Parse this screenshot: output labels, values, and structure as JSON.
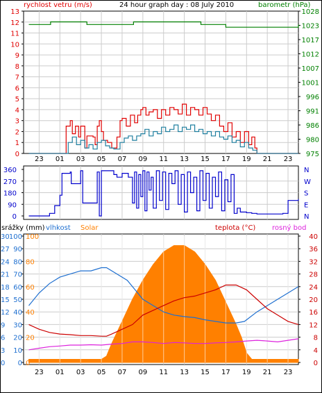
{
  "title": "24 hour graph day : 08 July 2010",
  "colors": {
    "wind_axis": "#e00000",
    "baro_axis": "#008000",
    "wind_avg": "#1f7f9f",
    "wind_gust": "#e00000",
    "baro_line": "#008000",
    "direction": "#0000cc",
    "humidity": "#1e6fd0",
    "rain_axis": "#1e6fd0",
    "solar": "#ff8000",
    "temp": "#cc0000",
    "dew": "#dd22dd",
    "grid": "#cccccc"
  },
  "chart_data": [
    {
      "type": "line",
      "panel": "wind-barometer",
      "left_label": "rychlost vetru (m/s)",
      "right_label": "barometr (hPa)",
      "left_ticks": [
        "0",
        "1",
        "2",
        "3",
        "4",
        "5",
        "6",
        "7",
        "8",
        "9",
        "10",
        "11",
        "12",
        "13"
      ],
      "right_ticks": [
        "975",
        "980",
        "986",
        "991",
        "996",
        "1001",
        "1007",
        "1012",
        "1017",
        "1023",
        "1028"
      ],
      "x_ticks": [
        "23",
        "01",
        "03",
        "05",
        "07",
        "09",
        "11",
        "13",
        "15",
        "17",
        "19",
        "21",
        "23"
      ],
      "ylim_left": [
        0,
        13
      ],
      "ylim_right": [
        975,
        1028
      ],
      "x_hours_range": [
        -2.5,
        24
      ],
      "series": [
        {
          "name": "gust",
          "x": [
            -2.0,
            1.5,
            1.6,
            2.0,
            2.2,
            2.5,
            2.8,
            3.0,
            3.4,
            3.6,
            4.2,
            4.4,
            4.6,
            4.8,
            5.0,
            5.2,
            5.6,
            6.0,
            6.5,
            6.8,
            7.0,
            7.4,
            7.8,
            8.2,
            8.5,
            8.8,
            9.0,
            9.3,
            9.6,
            10.0,
            10.4,
            10.8,
            11.2,
            11.6,
            12.0,
            12.4,
            12.8,
            13.2,
            13.6,
            14.0,
            14.4,
            14.8,
            15.2,
            15.6,
            16.0,
            16.4,
            16.8,
            17.2,
            17.6,
            18.0,
            18.4,
            18.8,
            19.2,
            19.5,
            19.8,
            20.0,
            24.0
          ],
          "y": [
            0,
            0,
            2.5,
            3.0,
            1.8,
            2.5,
            1.5,
            2.5,
            0.5,
            1.6,
            1.5,
            0.8,
            2.5,
            3.0,
            2.0,
            1.2,
            1.0,
            0.5,
            1.5,
            3.0,
            3.2,
            2.5,
            3.5,
            2.8,
            3.5,
            4.0,
            4.2,
            3.5,
            3.8,
            4.0,
            3.2,
            4.0,
            3.5,
            4.2,
            4.0,
            3.6,
            4.5,
            3.5,
            4.2,
            4.0,
            3.5,
            4.2,
            3.6,
            3.0,
            3.5,
            2.5,
            2.0,
            2.8,
            1.5,
            2.0,
            1.0,
            2.0,
            0.8,
            1.5,
            0.5,
            0,
            0
          ]
        },
        {
          "name": "average",
          "x": [
            -2.0,
            1.5,
            1.8,
            2.2,
            2.6,
            3.0,
            3.4,
            3.8,
            4.2,
            4.6,
            5.0,
            5.4,
            5.8,
            6.2,
            6.8,
            7.2,
            7.6,
            8.0,
            8.4,
            8.8,
            9.2,
            9.6,
            10.0,
            10.4,
            10.8,
            11.2,
            11.6,
            12.0,
            12.4,
            12.8,
            13.2,
            13.6,
            14.0,
            14.4,
            14.8,
            15.2,
            15.6,
            16.0,
            16.4,
            16.8,
            17.2,
            17.6,
            18.0,
            18.4,
            18.8,
            19.2,
            19.6,
            20.0,
            24.0
          ],
          "y": [
            0,
            0,
            1.0,
            1.5,
            0.8,
            1.2,
            0.5,
            0.8,
            0.4,
            1.0,
            1.2,
            0.7,
            0.5,
            0.4,
            1.0,
            1.4,
            1.6,
            1.2,
            1.6,
            1.8,
            2.2,
            1.6,
            2.0,
            1.8,
            2.4,
            2.0,
            2.2,
            2.6,
            2.0,
            2.4,
            2.2,
            2.6,
            2.0,
            2.2,
            1.8,
            2.0,
            1.6,
            2.0,
            1.5,
            1.3,
            1.6,
            1.0,
            1.2,
            0.6,
            1.0,
            0.5,
            0.3,
            0,
            0
          ]
        },
        {
          "name": "pressure",
          "axis": "right",
          "x": [
            -2.0,
            0.0,
            0.1,
            3.5,
            3.6,
            8.0,
            8.1,
            14.5,
            14.6,
            17.0,
            24.0
          ],
          "y": [
            1023,
            1023,
            1024,
            1024,
            1023,
            1023,
            1024,
            1024,
            1023,
            1022,
            1023
          ]
        }
      ]
    },
    {
      "type": "line",
      "panel": "wind-direction",
      "left_ticks": [
        "0",
        "90",
        "180",
        "270",
        "360"
      ],
      "right_ticks": [
        "N",
        "W",
        "S",
        "E",
        "N"
      ],
      "x_ticks": [
        "23",
        "01",
        "03",
        "05",
        "07",
        "09",
        "11",
        "13",
        "15",
        "17",
        "19",
        "21",
        "23"
      ],
      "ylim": [
        0,
        360
      ],
      "series": [
        {
          "name": "direction",
          "x": [
            -2.0,
            0.0,
            0.5,
            1.0,
            1.2,
            1.8,
            2.0,
            2.1,
            3.0,
            3.2,
            4.6,
            4.8,
            5.0,
            6.2,
            6.5,
            7.0,
            7.6,
            8.0,
            8.2,
            8.4,
            8.6,
            8.8,
            9.0,
            9.2,
            9.4,
            9.6,
            9.8,
            10.0,
            10.3,
            10.6,
            10.9,
            11.2,
            11.5,
            11.8,
            12.1,
            12.4,
            12.7,
            13.0,
            13.3,
            13.6,
            13.9,
            14.2,
            14.5,
            14.8,
            15.1,
            15.4,
            15.7,
            16.0,
            16.3,
            16.6,
            16.9,
            17.2,
            17.5,
            17.8,
            18.1,
            18.4,
            19.0,
            19.5,
            20.0,
            22.5,
            23.0,
            24.0
          ],
          "y": [
            0,
            20,
            80,
            160,
            330,
            330,
            340,
            250,
            350,
            100,
            340,
            0,
            350,
            320,
            300,
            330,
            300,
            100,
            340,
            60,
            320,
            150,
            350,
            40,
            340,
            200,
            300,
            60,
            350,
            120,
            340,
            50,
            330,
            250,
            350,
            90,
            320,
            30,
            340,
            180,
            300,
            40,
            350,
            120,
            330,
            60,
            300,
            150,
            340,
            40,
            280,
            110,
            320,
            20,
            60,
            30,
            25,
            20,
            15,
            20,
            120,
            130
          ]
        }
      ]
    },
    {
      "type": "line",
      "panel": "temperature-humidity",
      "labels": {
        "rain": "srážky (mm)",
        "humidity": "vlhkost",
        "solar": "Solar",
        "temp": "teplota (°C)",
        "dew": "rosný bod"
      },
      "rain_ticks": [
        "0",
        "3",
        "6",
        "9",
        "12",
        "15",
        "18",
        "21",
        "24",
        "27",
        "30"
      ],
      "humidity_ticks": [
        "0",
        "10",
        "20",
        "30",
        "40",
        "50",
        "60",
        "70",
        "80",
        "90",
        "100"
      ],
      "temp_ticks": [
        "0",
        "4",
        "8",
        "12",
        "16",
        "20",
        "24",
        "28",
        "32",
        "36",
        "40"
      ],
      "solar_ticks": [
        "0",
        "20",
        "40",
        "60",
        "80",
        "100"
      ],
      "x_ticks": [
        "23",
        "01",
        "03",
        "05",
        "07",
        "09",
        "11",
        "13",
        "15",
        "17",
        "19",
        "21",
        "23"
      ],
      "ylim_temp": [
        0,
        40
      ],
      "series": [
        {
          "name": "humidity",
          "x": [
            -2.0,
            -1.0,
            0.0,
            1.0,
            2.0,
            3.0,
            4.0,
            5.0,
            5.5,
            6.5,
            7.5,
            8.5,
            9.0,
            10.0,
            11.0,
            12.0,
            13.0,
            14.0,
            15.0,
            16.0,
            17.0,
            18.0,
            18.8,
            20.0,
            21.0,
            22.0,
            23.0,
            24.0
          ],
          "y": [
            18,
            22,
            25,
            27,
            28,
            29,
            29,
            30,
            30,
            28,
            26,
            22,
            20,
            18,
            16,
            15,
            14.5,
            14.2,
            13.5,
            13,
            12.5,
            12.5,
            13,
            16,
            18,
            20,
            22,
            24
          ]
        },
        {
          "name": "solar",
          "x": [
            -2.0,
            5.0,
            5.5,
            6.0,
            7.0,
            8.0,
            9.0,
            10.0,
            11.0,
            12.0,
            12.5,
            13.0,
            14.0,
            15.0,
            16.0,
            17.0,
            18.0,
            18.5,
            19.0,
            19.5,
            24.0
          ],
          "y": [
            1,
            1,
            2,
            6,
            13,
            20,
            26,
            31,
            35,
            37,
            37,
            37,
            35,
            31,
            26,
            19,
            12,
            8,
            3,
            1,
            1
          ]
        },
        {
          "name": "temp",
          "x": [
            -2.0,
            -1.0,
            0.0,
            1.0,
            2.0,
            3.0,
            4.0,
            5.0,
            5.5,
            6.0,
            7.0,
            8.0,
            9.0,
            10.0,
            11.0,
            12.0,
            13.0,
            14.0,
            15.0,
            16.0,
            17.0,
            18.0,
            19.0,
            20.0,
            21.0,
            22.0,
            23.0,
            24.0
          ],
          "y": [
            12,
            10.5,
            9.5,
            9,
            8.8,
            8.5,
            8.5,
            8.3,
            8.3,
            9,
            10.5,
            12,
            15,
            16.5,
            18,
            19.5,
            20.5,
            21,
            22,
            23,
            24.5,
            24.5,
            23,
            20,
            17,
            15,
            13,
            12
          ]
        },
        {
          "name": "dew",
          "x": [
            -2.0,
            -1.0,
            0.0,
            1.0,
            2.0,
            3.0,
            4.0,
            5.0,
            6.0,
            7.0,
            8.0,
            9.0,
            10.0,
            11.0,
            12.0,
            13.0,
            14.0,
            15.0,
            16.0,
            17.0,
            18.0,
            19.0,
            20.0,
            21.0,
            22.0,
            23.0,
            24.0
          ],
          "y": [
            4,
            4.5,
            5,
            5.2,
            5.5,
            5.5,
            5.6,
            5.5,
            5.8,
            6,
            6.5,
            6.5,
            6.3,
            6,
            6.3,
            6.2,
            6,
            6,
            6.2,
            6.3,
            6.5,
            6.8,
            7,
            6.8,
            6.5,
            7,
            7.5
          ]
        }
      ]
    }
  ]
}
